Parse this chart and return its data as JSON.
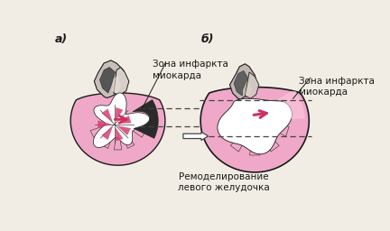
{
  "bg_color": "#f2ede4",
  "label_a": "а)",
  "label_b": "б)",
  "text_zona_infarkt_a": "Зона инфаркта\nмиокарда",
  "text_zona_infarkt_b": "Зона инфаркта\nмиокарда",
  "text_remodel": "Ремоделирование\nлевого желудочка",
  "pink_color": "#f0a8c8",
  "pink_light": "#f5bcd4",
  "dark_pink": "#d44070",
  "arrow_color": "#d03060",
  "black_color": "#1a1a1a",
  "gray_dark": "#444444",
  "gray_mid": "#888888",
  "gray_light": "#bbbbbb",
  "gray_vessel": "#999090",
  "dashed_color": "#444444",
  "white_color": "#ffffff",
  "infarct_black": "#2a2a2a"
}
